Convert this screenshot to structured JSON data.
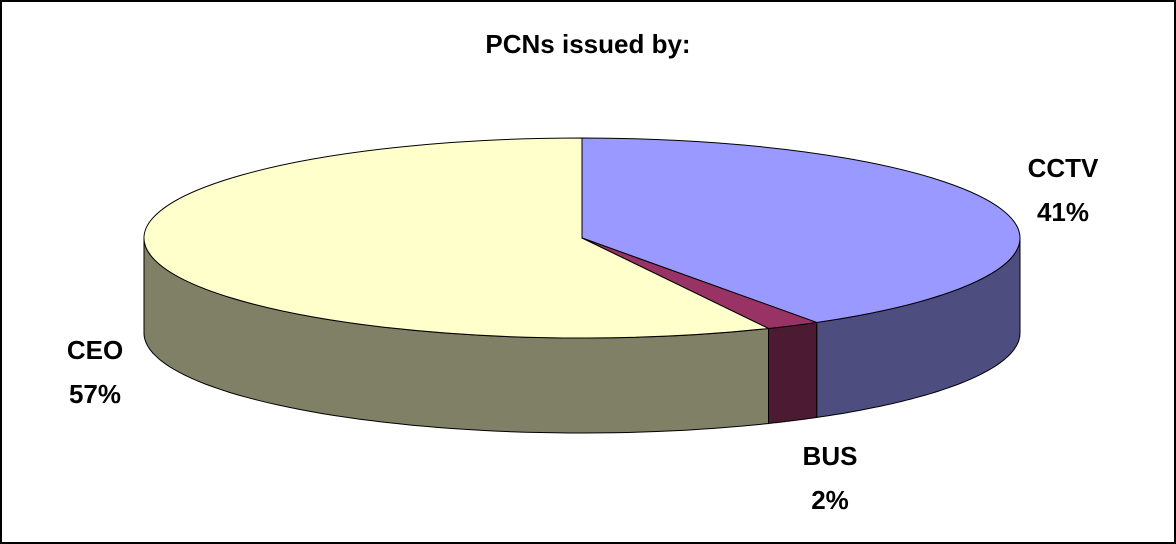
{
  "chart_data": {
    "type": "pie",
    "title": "PCNs issued by:",
    "categories": [
      "CCTV",
      "BUS",
      "CEO"
    ],
    "values": [
      41,
      2,
      57
    ],
    "value_labels": [
      "41%",
      "2%",
      "57%"
    ],
    "colors": [
      "#9999ff",
      "#993366",
      "#ffffcc"
    ]
  }
}
